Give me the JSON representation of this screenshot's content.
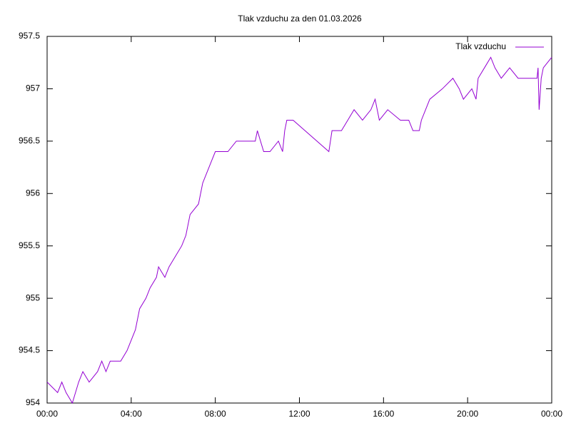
{
  "chart_data": {
    "type": "line",
    "title": "Tlak vzduchu za den 01.03.2026",
    "x": [
      0,
      0.5,
      0.7,
      0.9,
      1.2,
      1.5,
      1.7,
      2.0,
      2.4,
      2.6,
      2.8,
      3.0,
      3.5,
      3.8,
      4.0,
      4.2,
      4.3,
      4.4,
      4.7,
      4.9,
      5.2,
      5.3,
      5.6,
      5.8,
      6.1,
      6.4,
      6.6,
      6.8,
      7.2,
      7.4,
      7.6,
      7.8,
      8.0,
      8.6,
      9.0,
      9.9,
      10.0,
      10.3,
      10.6,
      11.0,
      11.2,
      11.3,
      11.4,
      11.7,
      13.4,
      13.55,
      14.0,
      14.3,
      14.6,
      15.0,
      15.4,
      15.6,
      15.8,
      16.2,
      16.8,
      17.2,
      17.4,
      17.7,
      17.8,
      18.0,
      18.2,
      18.8,
      19.3,
      19.6,
      19.8,
      20.2,
      20.4,
      20.5,
      20.8,
      21.1,
      21.3,
      21.6,
      22.0,
      22.4,
      23.3,
      23.35,
      23.4,
      23.5,
      23.6,
      24.0
    ],
    "series": [
      {
        "name": "Tlak vzduchu",
        "color": "#9400d3",
        "values": [
          954.2,
          954.1,
          954.2,
          954.1,
          954.0,
          954.2,
          954.3,
          954.2,
          954.3,
          954.4,
          954.3,
          954.4,
          954.4,
          954.5,
          954.6,
          954.7,
          954.8,
          954.9,
          955.0,
          955.1,
          955.2,
          955.3,
          955.2,
          955.3,
          955.4,
          955.5,
          955.6,
          955.8,
          955.9,
          956.1,
          956.2,
          956.3,
          956.4,
          956.4,
          956.5,
          956.5,
          956.6,
          956.4,
          956.4,
          956.5,
          956.4,
          956.6,
          956.7,
          956.7,
          956.4,
          956.6,
          956.6,
          956.7,
          956.8,
          956.7,
          956.8,
          956.9,
          956.7,
          956.8,
          956.7,
          956.7,
          956.6,
          956.6,
          956.7,
          956.8,
          956.9,
          957.0,
          957.1,
          957.0,
          956.9,
          957.0,
          956.9,
          957.1,
          957.2,
          957.3,
          957.2,
          957.1,
          957.2,
          957.1,
          957.1,
          957.2,
          956.8,
          957.1,
          957.2,
          957.3
        ]
      }
    ],
    "xlim": [
      0,
      24
    ],
    "xticks": [
      {
        "value": 0,
        "label": "00:00"
      },
      {
        "value": 4,
        "label": "04:00"
      },
      {
        "value": 8,
        "label": "08:00"
      },
      {
        "value": 12,
        "label": "12:00"
      },
      {
        "value": 16,
        "label": "16:00"
      },
      {
        "value": 20,
        "label": "20:00"
      },
      {
        "value": 24,
        "label": "00:00"
      }
    ],
    "ylim": [
      954,
      957.5
    ],
    "yticks": [
      954,
      954.5,
      955,
      955.5,
      956,
      956.5,
      957,
      957.5
    ],
    "legend": "top-right",
    "grid": false
  }
}
